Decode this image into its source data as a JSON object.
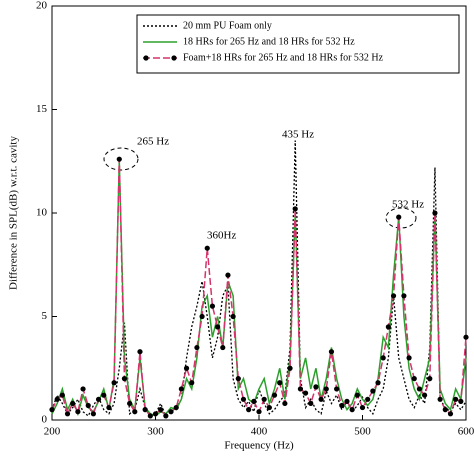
{
  "chart_data": {
    "type": "line",
    "xlabel": "Frequency (Hz)",
    "ylabel": "Difference in SPL(dB) w.r.t. cavity",
    "annotations": [
      "265 Hz",
      "360Hz",
      "435 Hz",
      "532 Hz"
    ],
    "x": [
      200,
      205,
      210,
      215,
      220,
      225,
      230,
      235,
      240,
      245,
      250,
      255,
      260,
      265,
      270,
      275,
      280,
      285,
      290,
      295,
      300,
      305,
      310,
      315,
      320,
      325,
      330,
      335,
      340,
      345,
      350,
      355,
      360,
      365,
      370,
      375,
      380,
      385,
      390,
      395,
      400,
      405,
      410,
      415,
      420,
      425,
      430,
      435,
      440,
      445,
      450,
      455,
      460,
      465,
      470,
      475,
      480,
      485,
      490,
      495,
      500,
      505,
      510,
      515,
      520,
      525,
      530,
      535,
      540,
      545,
      550,
      555,
      560,
      565,
      570,
      575,
      580,
      585,
      590,
      595,
      600
    ],
    "series": [
      {
        "name": "20 mm PU Foam only",
        "color": "#000000",
        "style": "dotted",
        "values": [
          0.5,
          1.2,
          0.8,
          0.3,
          0.6,
          1.0,
          0.4,
          0.2,
          0.7,
          1.1,
          0.5,
          0.3,
          0.8,
          2.5,
          4.7,
          0.3,
          0.5,
          1.5,
          0.6,
          0.2,
          0.3,
          0.8,
          0.2,
          0.4,
          0.6,
          1.0,
          3.0,
          4.5,
          5.5,
          6.7,
          5.0,
          3.0,
          4.0,
          6.0,
          6.5,
          2.0,
          1.0,
          0.6,
          0.9,
          0.4,
          1.5,
          0.8,
          0.3,
          0.5,
          0.9,
          1.2,
          3.5,
          13.5,
          2.0,
          0.6,
          1.0,
          0.5,
          0.3,
          1.4,
          0.8,
          1.2,
          0.5,
          0.9,
          0.4,
          0.7,
          1.1,
          0.6,
          0.3,
          1.0,
          1.5,
          3.0,
          6.0,
          3.0,
          2.0,
          1.0,
          0.6,
          1.2,
          0.8,
          3.5,
          12.2,
          1.0,
          0.6,
          0.4,
          0.8,
          0.5,
          0.9
        ]
      },
      {
        "name": "18 HRs  for 265 Hz and 18 HRs for  532 Hz",
        "color": "#2ca02c",
        "style": "solid",
        "values": [
          0.3,
          0.8,
          1.5,
          0.5,
          1.0,
          0.3,
          1.2,
          0.6,
          0.4,
          0.9,
          1.5,
          0.5,
          2.0,
          12.5,
          3.0,
          1.0,
          0.5,
          3.0,
          0.6,
          0.3,
          0.2,
          0.4,
          0.3,
          0.6,
          0.5,
          1.0,
          2.0,
          1.5,
          3.0,
          5.5,
          6.0,
          4.0,
          5.0,
          3.5,
          6.7,
          6.0,
          1.5,
          2.0,
          1.0,
          0.8,
          1.5,
          2.0,
          0.8,
          1.5,
          2.5,
          1.0,
          3.0,
          10.0,
          2.0,
          3.0,
          1.5,
          2.5,
          1.0,
          2.0,
          3.5,
          2.0,
          1.0,
          0.5,
          0.8,
          1.5,
          1.0,
          0.7,
          1.0,
          2.0,
          4.0,
          3.5,
          7.0,
          9.8,
          5.0,
          2.5,
          1.5,
          1.0,
          2.0,
          3.0,
          10.0,
          1.5,
          0.8,
          0.5,
          1.5,
          1.0,
          3.0
        ]
      },
      {
        "name": "Foam+18 HRs  for 265 Hz and 18 HRs for  532 Hz",
        "color": "#d6336c",
        "style": "dashed",
        "marker_color": "#000000",
        "values": [
          0.5,
          1.0,
          1.2,
          0.3,
          0.8,
          0.4,
          1.5,
          0.7,
          0.3,
          1.0,
          1.2,
          0.6,
          1.8,
          12.6,
          2.0,
          0.8,
          0.4,
          3.3,
          0.5,
          0.2,
          0.3,
          0.5,
          0.2,
          0.4,
          0.6,
          1.5,
          2.5,
          1.8,
          3.5,
          5.0,
          8.3,
          5.5,
          4.5,
          3.5,
          7.0,
          5.0,
          2.0,
          1.0,
          0.5,
          0.9,
          0.4,
          1.0,
          0.6,
          1.2,
          1.8,
          0.8,
          2.5,
          10.2,
          1.5,
          1.3,
          0.8,
          1.6,
          1.0,
          1.5,
          3.3,
          1.5,
          0.7,
          0.9,
          0.5,
          1.2,
          0.6,
          1.0,
          1.4,
          1.8,
          3.0,
          4.5,
          6.0,
          9.8,
          6.0,
          3.0,
          2.0,
          1.5,
          1.2,
          2.0,
          10.0,
          1.0,
          0.5,
          0.3,
          1.0,
          0.9,
          4.0
        ]
      }
    ],
    "xlim": [
      200,
      600
    ],
    "xticks": [
      200,
      300,
      400,
      500,
      600
    ],
    "ylim": [
      0,
      20
    ],
    "yticks": [
      0,
      5,
      10,
      15,
      20
    ],
    "grid": false,
    "legend": "upper right"
  }
}
